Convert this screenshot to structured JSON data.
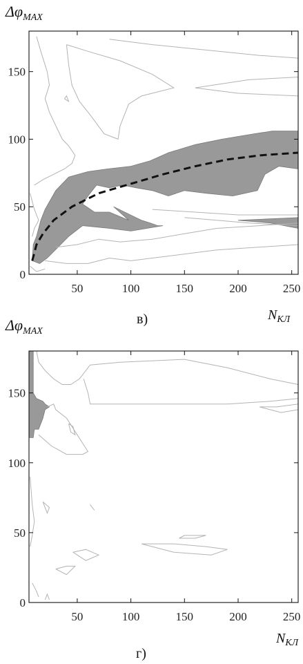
{
  "chart_data": [
    {
      "type": "contour",
      "panel_label": "в)",
      "ylabel": {
        "main": "Δφ",
        "sub": "MAX"
      },
      "xlabel": {
        "main": "N",
        "sub": "КЛ"
      },
      "xlim": [
        5,
        256
      ],
      "ylim": [
        0,
        180
      ],
      "x_ticks": [
        50,
        100,
        150,
        200,
        250
      ],
      "y_ticks": [
        0,
        50,
        100,
        150
      ],
      "colors": {
        "region": "#999999",
        "contour": "#b3b3b3",
        "trend": "#111111"
      },
      "shaded_regions": [
        [
          [
            8,
            10
          ],
          [
            9,
            22
          ],
          [
            12,
            28
          ],
          [
            16,
            40
          ],
          [
            20,
            48
          ],
          [
            30,
            62
          ],
          [
            42,
            72
          ],
          [
            60,
            76
          ],
          [
            78,
            78
          ],
          [
            100,
            80
          ],
          [
            118,
            84
          ],
          [
            135,
            90
          ],
          [
            160,
            96
          ],
          [
            185,
            100
          ],
          [
            215,
            104
          ],
          [
            232,
            106
          ],
          [
            256,
            106
          ],
          [
            256,
            78
          ],
          [
            238,
            80
          ],
          [
            225,
            74
          ],
          [
            218,
            62
          ],
          [
            195,
            58
          ],
          [
            170,
            60
          ],
          [
            150,
            62
          ],
          [
            135,
            58
          ],
          [
            120,
            62
          ],
          [
            105,
            64
          ],
          [
            92,
            66
          ],
          [
            80,
            64
          ],
          [
            68,
            66
          ],
          [
            60,
            58
          ],
          [
            55,
            52
          ],
          [
            66,
            46
          ],
          [
            80,
            46
          ],
          [
            98,
            40
          ],
          [
            84,
            50
          ],
          [
            110,
            40
          ],
          [
            118,
            38
          ],
          [
            125,
            36
          ],
          [
            130,
            36
          ],
          [
            100,
            32
          ],
          [
            80,
            34
          ],
          [
            55,
            36
          ],
          [
            42,
            28
          ],
          [
            32,
            20
          ],
          [
            22,
            12
          ],
          [
            15,
            8
          ]
        ],
        [
          [
            200,
            40
          ],
          [
            256,
            42
          ],
          [
            256,
            34
          ],
          [
            230,
            38
          ]
        ]
      ],
      "contour_lines": [
        [
          [
            12,
            176
          ],
          [
            16,
            165
          ],
          [
            22,
            150
          ],
          [
            24,
            140
          ],
          [
            20,
            130
          ],
          [
            24,
            120
          ],
          [
            30,
            110
          ],
          [
            36,
            100
          ],
          [
            42,
            95
          ],
          [
            48,
            88
          ],
          [
            45,
            82
          ],
          [
            38,
            78
          ],
          [
            28,
            74
          ],
          [
            18,
            70
          ],
          [
            10,
            66
          ]
        ],
        [
          [
            40,
            170
          ],
          [
            60,
            165
          ],
          [
            90,
            158
          ],
          [
            120,
            148
          ],
          [
            140,
            138
          ],
          [
            110,
            132
          ],
          [
            98,
            126
          ],
          [
            90,
            110
          ],
          [
            88,
            100
          ],
          [
            75,
            104
          ],
          [
            62,
            118
          ],
          [
            52,
            128
          ],
          [
            45,
            140
          ],
          [
            42,
            155
          ],
          [
            40,
            170
          ]
        ],
        [
          [
            160,
            138
          ],
          [
            200,
            134
          ],
          [
            256,
            132
          ],
          [
            256,
            146
          ],
          [
            210,
            144
          ],
          [
            160,
            138
          ]
        ],
        [
          [
            80,
            174
          ],
          [
            120,
            170
          ],
          [
            170,
            166
          ],
          [
            220,
            162
          ],
          [
            256,
            160
          ]
        ],
        [
          [
            38,
            130
          ],
          [
            42,
            128
          ],
          [
            40,
            132
          ],
          [
            38,
            130
          ]
        ],
        [
          [
            120,
            48
          ],
          [
            160,
            46
          ],
          [
            200,
            44
          ],
          [
            256,
            44
          ]
        ],
        [
          [
            150,
            42
          ],
          [
            180,
            40
          ],
          [
            210,
            38
          ],
          [
            256,
            36
          ]
        ],
        [
          [
            30,
            20
          ],
          [
            50,
            22
          ],
          [
            70,
            26
          ],
          [
            90,
            24
          ],
          [
            120,
            26
          ],
          [
            150,
            30
          ],
          [
            180,
            34
          ],
          [
            220,
            36
          ],
          [
            256,
            38
          ]
        ],
        [
          [
            20,
            10
          ],
          [
            40,
            8
          ],
          [
            60,
            8
          ],
          [
            80,
            12
          ],
          [
            100,
            10
          ],
          [
            140,
            14
          ],
          [
            180,
            18
          ],
          [
            256,
            22
          ]
        ],
        [
          [
            6,
            60
          ],
          [
            10,
            48
          ],
          [
            14,
            40
          ],
          [
            10,
            34
          ],
          [
            8,
            28
          ]
        ],
        [
          [
            6,
            6
          ],
          [
            12,
            2
          ],
          [
            20,
            4
          ]
        ]
      ],
      "trend_line": [
        [
          8,
          10
        ],
        [
          12,
          22
        ],
        [
          18,
          30
        ],
        [
          28,
          40
        ],
        [
          45,
          50
        ],
        [
          70,
          60
        ],
        [
          100,
          67
        ],
        [
          130,
          74
        ],
        [
          160,
          80
        ],
        [
          190,
          85
        ],
        [
          220,
          88
        ],
        [
          256,
          90
        ]
      ]
    },
    {
      "type": "contour",
      "panel_label": "г)",
      "ylabel": {
        "main": "Δφ",
        "sub": "MAX"
      },
      "xlabel": {
        "main": "N",
        "sub": "КЛ"
      },
      "xlim": [
        5,
        256
      ],
      "ylim": [
        0,
        180
      ],
      "x_ticks": [
        50,
        100,
        150,
        200,
        250
      ],
      "y_ticks": [
        0,
        50,
        100,
        150
      ],
      "colors": {
        "region": "#999999",
        "contour": "#b3b3b3"
      },
      "shaded_regions": [
        [
          [
            5,
            180
          ],
          [
            9,
            180
          ],
          [
            9,
            150
          ],
          [
            12,
            146
          ],
          [
            18,
            144
          ],
          [
            20,
            142
          ],
          [
            24,
            140
          ],
          [
            20,
            138
          ],
          [
            18,
            132
          ],
          [
            14,
            124
          ],
          [
            10,
            124
          ],
          [
            9,
            118
          ],
          [
            5,
            118
          ]
        ]
      ],
      "contour_lines": [
        [
          [
            12,
            180
          ],
          [
            14,
            172
          ],
          [
            20,
            166
          ],
          [
            28,
            160
          ],
          [
            36,
            156
          ],
          [
            44,
            156
          ],
          [
            52,
            160
          ],
          [
            62,
            170
          ],
          [
            90,
            172
          ],
          [
            150,
            174
          ],
          [
            190,
            168
          ],
          [
            230,
            160
          ],
          [
            256,
            156
          ]
        ],
        [
          [
            56,
            160
          ],
          [
            60,
            150
          ],
          [
            62,
            142
          ],
          [
            90,
            142
          ],
          [
            140,
            142
          ],
          [
            190,
            142
          ],
          [
            230,
            144
          ],
          [
            256,
            146
          ]
        ],
        [
          [
            22,
            140
          ],
          [
            28,
            142
          ],
          [
            30,
            138
          ],
          [
            40,
            132
          ],
          [
            50,
            120
          ],
          [
            60,
            108
          ],
          [
            55,
            106
          ],
          [
            40,
            106
          ],
          [
            26,
            112
          ],
          [
            14,
            120
          ]
        ],
        [
          [
            42,
            128
          ],
          [
            44,
            122
          ],
          [
            48,
            120
          ],
          [
            46,
            126
          ],
          [
            42,
            128
          ]
        ],
        [
          [
            220,
            140
          ],
          [
            240,
            136
          ],
          [
            256,
            138
          ],
          [
            256,
            142
          ],
          [
            236,
            140
          ],
          [
            220,
            140
          ]
        ],
        [
          [
            6,
            90
          ],
          [
            8,
            70
          ],
          [
            10,
            58
          ],
          [
            8,
            48
          ],
          [
            6,
            40
          ]
        ],
        [
          [
            18,
            72
          ],
          [
            22,
            64
          ],
          [
            24,
            68
          ],
          [
            18,
            72
          ]
        ],
        [
          [
            62,
            70
          ],
          [
            66,
            66
          ],
          [
            64,
            68
          ],
          [
            62,
            70
          ]
        ],
        [
          [
            110,
            42
          ],
          [
            140,
            36
          ],
          [
            175,
            34
          ],
          [
            190,
            38
          ],
          [
            170,
            40
          ],
          [
            140,
            42
          ],
          [
            110,
            42
          ]
        ],
        [
          [
            145,
            46
          ],
          [
            160,
            46
          ],
          [
            170,
            48
          ],
          [
            150,
            48
          ],
          [
            145,
            46
          ]
        ],
        [
          [
            46,
            36
          ],
          [
            58,
            30
          ],
          [
            70,
            34
          ],
          [
            58,
            38
          ],
          [
            46,
            36
          ]
        ],
        [
          [
            30,
            24
          ],
          [
            40,
            26
          ],
          [
            48,
            26
          ],
          [
            40,
            20
          ],
          [
            30,
            24
          ]
        ],
        [
          [
            8,
            14
          ],
          [
            12,
            8
          ],
          [
            14,
            4
          ]
        ],
        [
          [
            20,
            2
          ],
          [
            22,
            6
          ],
          [
            24,
            2
          ]
        ]
      ]
    }
  ]
}
